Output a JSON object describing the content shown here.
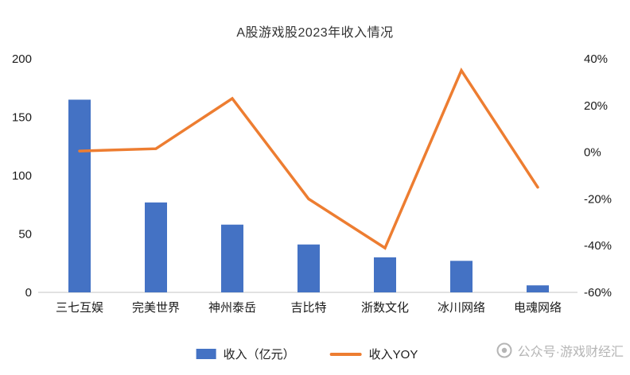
{
  "title": "A股游戏股2023年收入情况",
  "watermark": {
    "text": "公众号·游戏财经汇"
  },
  "legend": [
    {
      "label": "收入（亿元）",
      "type": "bar",
      "color": "#4472C4"
    },
    {
      "label": "收入YOY",
      "type": "line",
      "color": "#ED7D31"
    }
  ],
  "chart_data": {
    "type": "combo-bar-line",
    "title": "A股游戏股2023年收入情况",
    "categories": [
      "三七互娱",
      "完美世界",
      "神州泰岳",
      "吉比特",
      "浙数文化",
      "冰川网络",
      "电魂网络"
    ],
    "series": [
      {
        "name": "收入（亿元）",
        "type": "bar",
        "axis": "left",
        "color": "#4472C4",
        "values": [
          165,
          77,
          58,
          41,
          30,
          27,
          6
        ]
      },
      {
        "name": "收入YOY",
        "type": "line",
        "axis": "right",
        "color": "#ED7D31",
        "values": [
          0.5,
          1.5,
          23,
          -20,
          -41,
          35,
          -15
        ]
      }
    ],
    "left_axis": {
      "min": 0,
      "max": 200,
      "ticks": [
        0,
        50,
        100,
        150,
        200
      ],
      "format": "number"
    },
    "right_axis": {
      "min": -60,
      "max": 40,
      "ticks": [
        -60,
        -40,
        -20,
        0,
        20,
        40
      ],
      "format": "percent"
    },
    "grid": false,
    "legend_position": "bottom"
  }
}
